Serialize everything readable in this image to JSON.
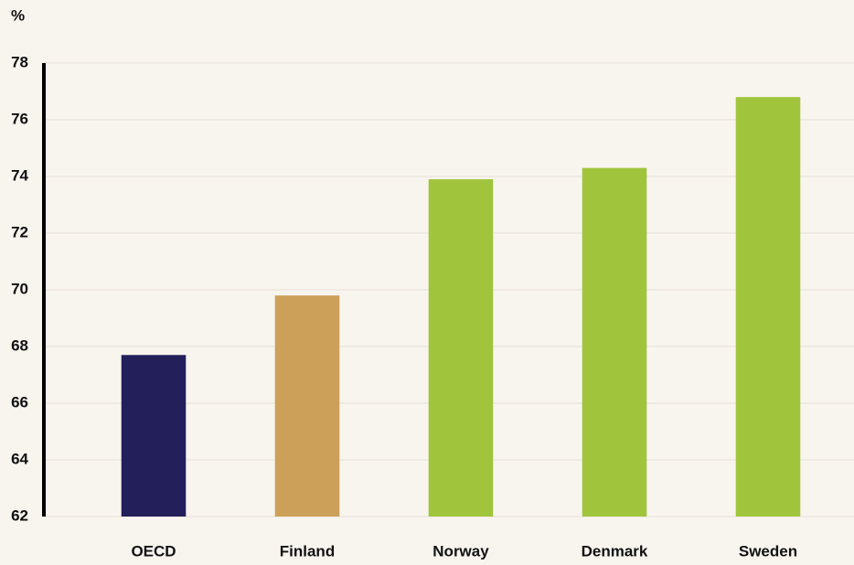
{
  "chart_data": {
    "type": "bar",
    "y_unit": "%",
    "categories": [
      "OECD",
      "Finland",
      "Norway",
      "Denmark",
      "Sweden"
    ],
    "values": [
      67.7,
      69.8,
      73.9,
      74.3,
      76.8
    ],
    "colors": [
      "#221f5a",
      "#cda05a",
      "#a0c43c",
      "#a0c43c",
      "#a0c43c"
    ],
    "ylim": [
      62,
      78
    ],
    "yticks": [
      62,
      64,
      66,
      68,
      70,
      72,
      74,
      76,
      78
    ],
    "grid": true
  }
}
